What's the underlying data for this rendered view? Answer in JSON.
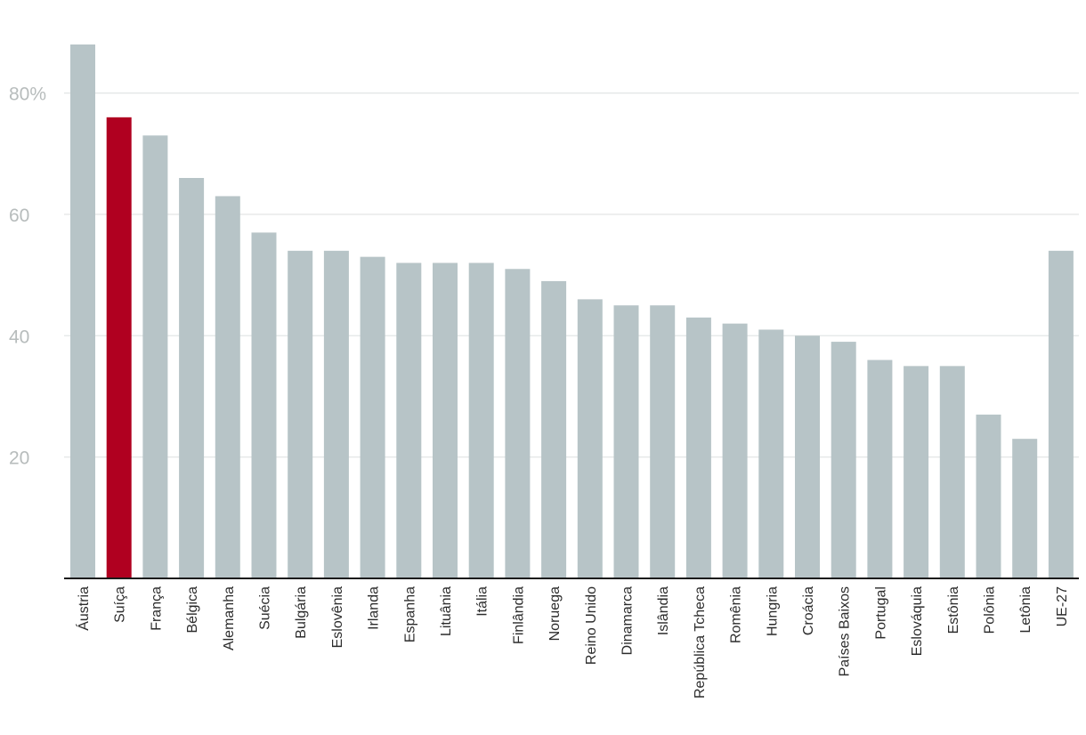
{
  "chart_data": {
    "type": "bar",
    "title": "",
    "xlabel": "",
    "ylabel": "",
    "ylim": [
      0,
      88
    ],
    "yticks": [
      20,
      40,
      60,
      80
    ],
    "ytick_labels": [
      "20",
      "40",
      "60",
      "80%"
    ],
    "grid": true,
    "legend": "none",
    "categories": [
      "Áustria",
      "Suíça",
      "França",
      "Bélgica",
      "Alemanha",
      "Suécia",
      "Bulgária",
      "Eslovênia",
      "Irlanda",
      "Espanha",
      "Lituânia",
      "Itália",
      "Finlândia",
      "Noruega",
      "Reino Unido",
      "Dinamarca",
      "Islândia",
      "República Tcheca",
      "Romênia",
      "Hungria",
      "Croácia",
      "Países Baixos",
      "Portugal",
      "Eslováquia",
      "Estônia",
      "Polônia",
      "Letônia",
      "UE-27"
    ],
    "values": [
      88,
      76,
      73,
      66,
      63,
      57,
      54,
      54,
      53,
      52,
      52,
      52,
      51,
      49,
      46,
      45,
      45,
      43,
      42,
      41,
      40,
      39,
      36,
      35,
      35,
      27,
      23,
      54
    ],
    "highlight": "Suíça",
    "colors": {
      "bar": "#b7c4c7",
      "highlight": "#b00020",
      "grid": "#e3e6e6",
      "baseline": "#1a1a1a",
      "tick_text": "#b7bcbc",
      "category_text": "#2b2b2b"
    }
  }
}
